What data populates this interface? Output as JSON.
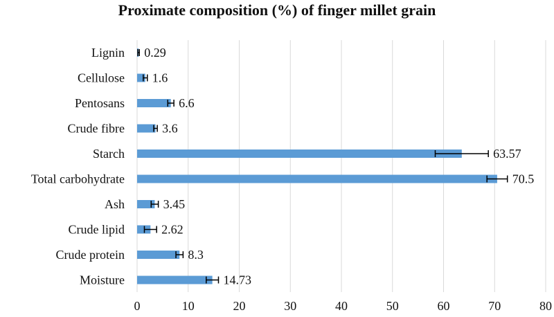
{
  "chart_data": {
    "type": "bar",
    "orientation": "horizontal",
    "title": "Proximate composition (%) of finger millet grain",
    "xlabel": "",
    "ylabel": "",
    "categories": [
      "Lignin",
      "Cellulose",
      "Pentosans",
      "Crude fibre",
      "Starch",
      "Total carbohydrate",
      "Ash",
      "Crude lipid",
      "Crude protein",
      "Moisture"
    ],
    "values": [
      0.29,
      1.6,
      6.6,
      3.6,
      63.57,
      70.5,
      3.45,
      2.62,
      8.3,
      14.73
    ],
    "value_labels": [
      "0.29",
      "1.6",
      "6.6",
      "3.6",
      "63.57",
      "70.5",
      "3.45",
      "2.62",
      "8.3",
      "14.73"
    ],
    "errors": [
      0.15,
      0.4,
      0.6,
      0.35,
      5.2,
      2.0,
      0.7,
      1.2,
      0.7,
      1.2
    ],
    "xlim": [
      0,
      80
    ],
    "xticks": [
      0,
      10,
      20,
      30,
      40,
      50,
      60,
      70,
      80
    ],
    "grid": true,
    "legend": "none",
    "colors": {
      "bar": "#5b9bd5",
      "grid": "#d9d9d9",
      "text": "#111111",
      "error": "#000000"
    }
  }
}
